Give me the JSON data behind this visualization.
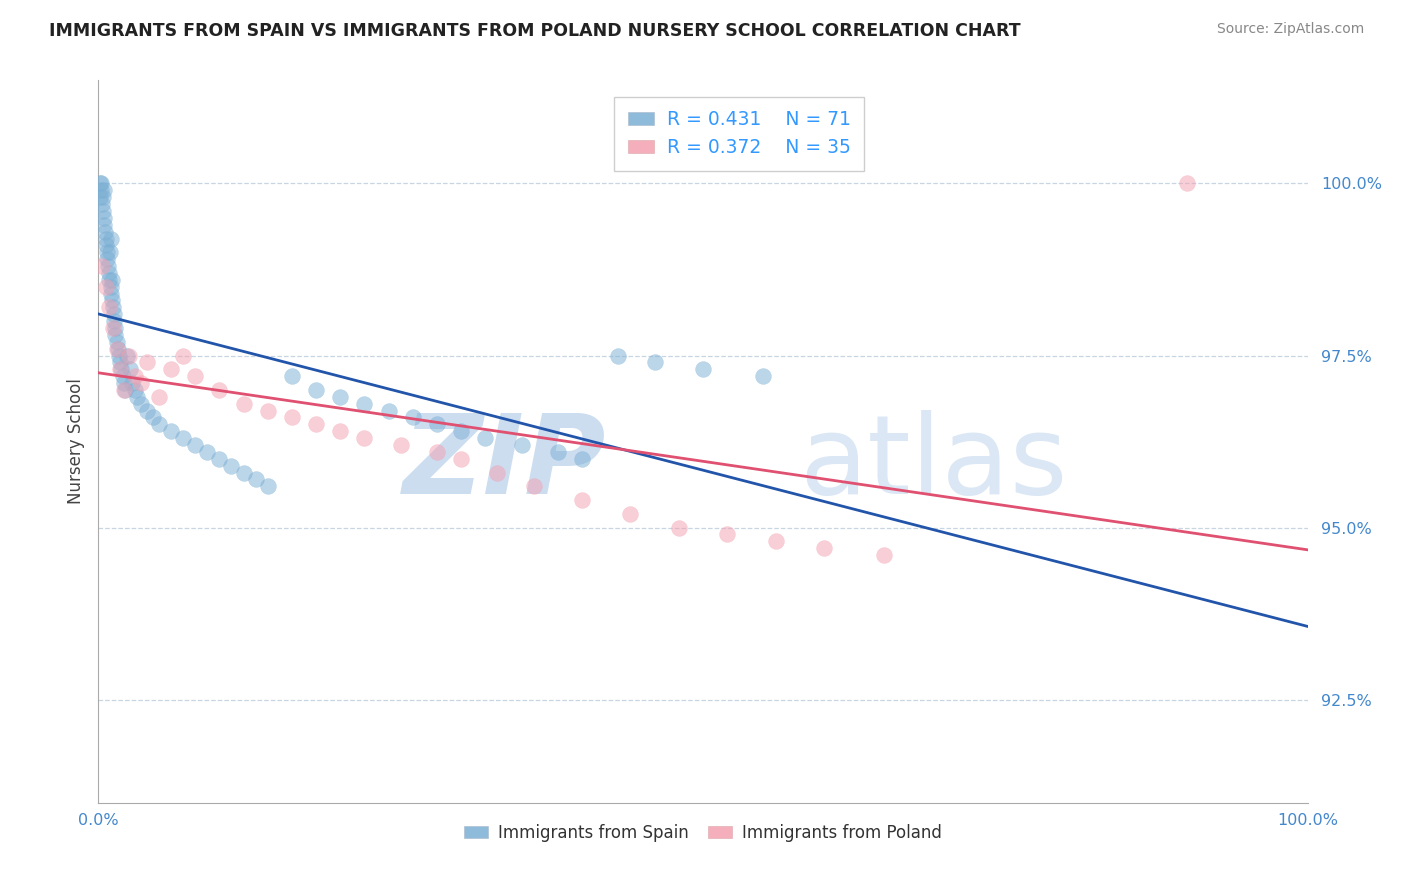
{
  "title": "IMMIGRANTS FROM SPAIN VS IMMIGRANTS FROM POLAND NURSERY SCHOOL CORRELATION CHART",
  "source": "Source: ZipAtlas.com",
  "ylabel": "Nursery School",
  "xlim": [
    0.0,
    100.0
  ],
  "ylim": [
    91.0,
    101.5
  ],
  "yticks": [
    92.5,
    95.0,
    97.5,
    100.0
  ],
  "blue_R": 0.431,
  "blue_N": 71,
  "pink_R": 0.372,
  "pink_N": 35,
  "blue_color": "#7BAFD4",
  "pink_color": "#F4A0B0",
  "blue_line_color": "#2255AA",
  "pink_line_color": "#E05070",
  "legend_R_color": "#3399FF",
  "blue_x": [
    0.1,
    0.15,
    0.2,
    0.25,
    0.3,
    0.35,
    0.4,
    0.45,
    0.5,
    0.5,
    0.55,
    0.6,
    0.65,
    0.7,
    0.75,
    0.8,
    0.85,
    0.9,
    0.95,
    1.0,
    1.0,
    1.05,
    1.1,
    1.15,
    1.2,
    1.25,
    1.3,
    1.35,
    1.4,
    1.5,
    1.6,
    1.7,
    1.8,
    1.9,
    2.0,
    2.1,
    2.2,
    2.4,
    2.6,
    2.8,
    3.0,
    3.2,
    3.5,
    4.0,
    4.5,
    5.0,
    6.0,
    7.0,
    8.0,
    9.0,
    10.0,
    11.0,
    12.0,
    13.0,
    14.0,
    16.0,
    18.0,
    20.0,
    22.0,
    24.0,
    26.0,
    28.0,
    30.0,
    32.0,
    35.0,
    38.0,
    40.0,
    43.0,
    46.0,
    50.0,
    55.0
  ],
  "blue_y": [
    99.8,
    100.0,
    99.9,
    100.0,
    99.7,
    99.8,
    99.6,
    99.5,
    99.4,
    99.9,
    99.3,
    99.2,
    99.1,
    99.0,
    98.9,
    98.8,
    98.7,
    98.6,
    99.0,
    98.5,
    99.2,
    98.4,
    98.6,
    98.3,
    98.2,
    98.1,
    98.0,
    97.9,
    97.8,
    97.7,
    97.6,
    97.5,
    97.4,
    97.3,
    97.2,
    97.1,
    97.0,
    97.5,
    97.3,
    97.1,
    97.0,
    96.9,
    96.8,
    96.7,
    96.6,
    96.5,
    96.4,
    96.3,
    96.2,
    96.1,
    96.0,
    95.9,
    95.8,
    95.7,
    95.6,
    97.2,
    97.0,
    96.9,
    96.8,
    96.7,
    96.6,
    96.5,
    96.4,
    96.3,
    96.2,
    96.1,
    96.0,
    97.5,
    97.4,
    97.3,
    97.2
  ],
  "pink_x": [
    0.3,
    0.6,
    0.9,
    1.2,
    1.5,
    1.8,
    2.1,
    2.5,
    3.0,
    3.5,
    4.0,
    5.0,
    6.0,
    7.0,
    8.0,
    10.0,
    12.0,
    14.0,
    16.0,
    18.0,
    20.0,
    22.0,
    25.0,
    28.0,
    30.0,
    33.0,
    36.0,
    40.0,
    44.0,
    48.0,
    52.0,
    56.0,
    60.0,
    65.0,
    90.0
  ],
  "pink_y": [
    98.8,
    98.5,
    98.2,
    97.9,
    97.6,
    97.3,
    97.0,
    97.5,
    97.2,
    97.1,
    97.4,
    96.9,
    97.3,
    97.5,
    97.2,
    97.0,
    96.8,
    96.7,
    96.6,
    96.5,
    96.4,
    96.3,
    96.2,
    96.1,
    96.0,
    95.8,
    95.6,
    95.4,
    95.2,
    95.0,
    94.9,
    94.8,
    94.7,
    94.6,
    100.0
  ]
}
